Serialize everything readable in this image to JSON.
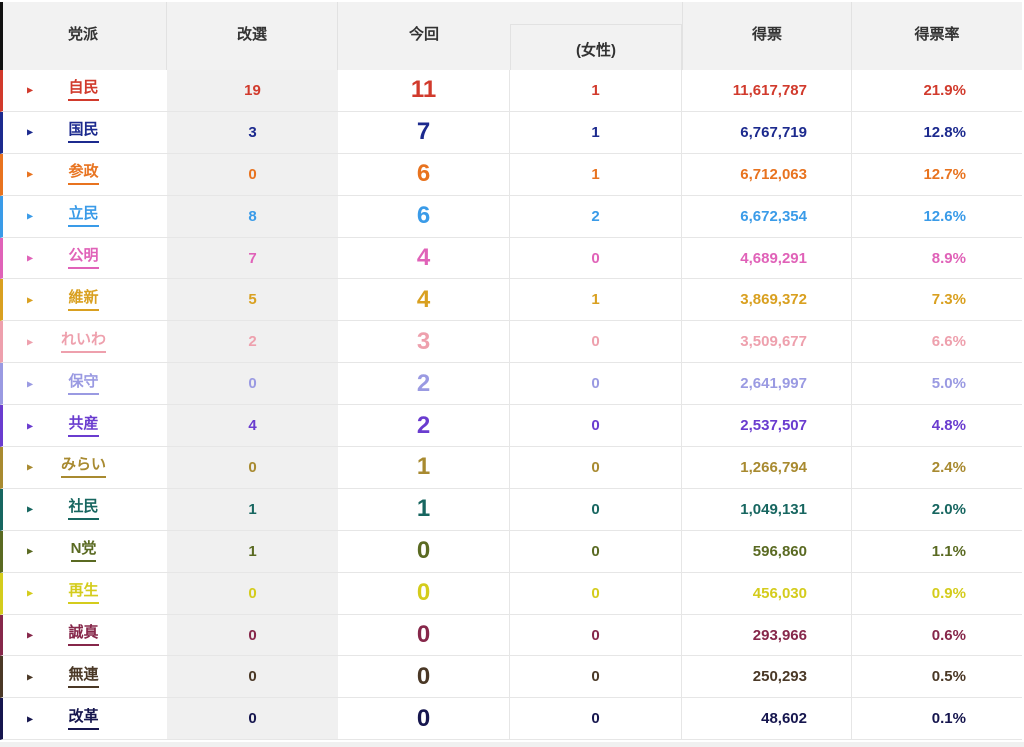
{
  "headers": {
    "party": "党派",
    "up": "改選",
    "current": "今回",
    "women": "(女性)",
    "votes": "得票",
    "rate": "得票率"
  },
  "rows": [
    {
      "party": "自民",
      "up": "19",
      "current": "11",
      "women": "1",
      "votes": "11,617,787",
      "rate": "21.9%",
      "color": "#d13a2c"
    },
    {
      "party": "国民",
      "up": "3",
      "current": "7",
      "women": "1",
      "votes": "6,767,719",
      "rate": "12.8%",
      "color": "#1c2a8e"
    },
    {
      "party": "参政",
      "up": "0",
      "current": "6",
      "women": "1",
      "votes": "6,712,063",
      "rate": "12.7%",
      "color": "#e8731f"
    },
    {
      "party": "立民",
      "up": "8",
      "current": "6",
      "women": "2",
      "votes": "6,672,354",
      "rate": "12.6%",
      "color": "#3a9be8"
    },
    {
      "party": "公明",
      "up": "7",
      "current": "4",
      "women": "0",
      "votes": "4,689,291",
      "rate": "8.9%",
      "color": "#e062b8"
    },
    {
      "party": "維新",
      "up": "5",
      "current": "4",
      "women": "1",
      "votes": "3,869,372",
      "rate": "7.3%",
      "color": "#d9a020"
    },
    {
      "party": "れいわ",
      "up": "2",
      "current": "3",
      "women": "0",
      "votes": "3,509,677",
      "rate": "6.6%",
      "color": "#eea0ad"
    },
    {
      "party": "保守",
      "up": "0",
      "current": "2",
      "women": "0",
      "votes": "2,641,997",
      "rate": "5.0%",
      "color": "#9a9ae2"
    },
    {
      "party": "共産",
      "up": "4",
      "current": "2",
      "women": "0",
      "votes": "2,537,507",
      "rate": "4.8%",
      "color": "#6a3ccf"
    },
    {
      "party": "みらい",
      "up": "0",
      "current": "1",
      "women": "0",
      "votes": "1,266,794",
      "rate": "2.4%",
      "color": "#a88a30"
    },
    {
      "party": "社民",
      "up": "1",
      "current": "1",
      "women": "0",
      "votes": "1,049,131",
      "rate": "2.0%",
      "color": "#176660"
    },
    {
      "party": "N党",
      "up": "1",
      "current": "0",
      "women": "0",
      "votes": "596,860",
      "rate": "1.1%",
      "color": "#5a6a22"
    },
    {
      "party": "再生",
      "up": "0",
      "current": "0",
      "women": "0",
      "votes": "456,030",
      "rate": "0.9%",
      "color": "#d4cc1c"
    },
    {
      "party": "誠真",
      "up": "0",
      "current": "0",
      "women": "0",
      "votes": "293,966",
      "rate": "0.6%",
      "color": "#86274a"
    },
    {
      "party": "無連",
      "up": "0",
      "current": "0",
      "women": "0",
      "votes": "250,293",
      "rate": "0.5%",
      "color": "#4a3826"
    },
    {
      "party": "改革",
      "up": "0",
      "current": "0",
      "women": "0",
      "votes": "48,602",
      "rate": "0.1%",
      "color": "#16164e"
    }
  ]
}
